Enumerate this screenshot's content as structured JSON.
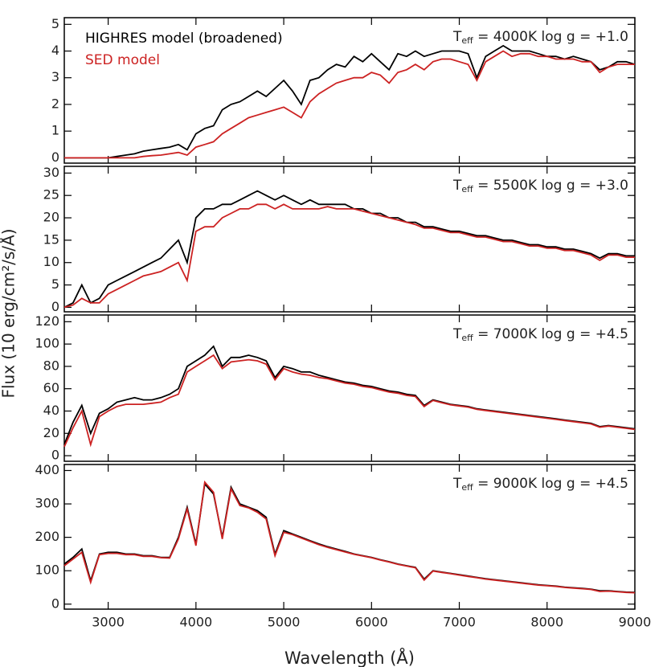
{
  "ylabel": "Flux (10 erg/cm²/s/Å)",
  "chart_data": [
    {
      "type": "line",
      "annotation": [
        "T",
        "eff",
        " = 4000K  log g = +1.0"
      ],
      "x": [
        2500,
        2600,
        2700,
        2800,
        2900,
        3000,
        3100,
        3200,
        3300,
        3400,
        3500,
        3600,
        3700,
        3800,
        3900,
        4000,
        4100,
        4200,
        4300,
        4400,
        4500,
        4600,
        4700,
        4800,
        4900,
        5000,
        5100,
        5200,
        5300,
        5400,
        5500,
        5600,
        5700,
        5800,
        5900,
        6000,
        6100,
        6200,
        6300,
        6400,
        6500,
        6600,
        6700,
        6800,
        6900,
        7000,
        7100,
        7200,
        7300,
        7400,
        7500,
        7600,
        7700,
        7800,
        7900,
        8000,
        8100,
        8200,
        8300,
        8400,
        8500,
        8600,
        8700,
        8800,
        8900,
        9000
      ],
      "series": [
        {
          "name": "HIGHRES model (broadened)",
          "color": "#000000",
          "values": [
            0,
            0,
            0,
            0,
            0,
            0,
            0.05,
            0.1,
            0.15,
            0.25,
            0.3,
            0.35,
            0.4,
            0.5,
            0.3,
            0.9,
            1.1,
            1.2,
            1.8,
            2.0,
            2.1,
            2.3,
            2.5,
            2.3,
            2.6,
            2.9,
            2.5,
            2.0,
            2.9,
            3.0,
            3.3,
            3.5,
            3.4,
            3.8,
            3.6,
            3.9,
            3.6,
            3.3,
            3.9,
            3.8,
            4.0,
            3.8,
            3.9,
            4.0,
            4.0,
            4.0,
            3.9,
            3.0,
            3.8,
            4.0,
            4.2,
            4.0,
            4.0,
            4.0,
            3.9,
            3.8,
            3.8,
            3.7,
            3.8,
            3.7,
            3.6,
            3.3,
            3.4,
            3.6,
            3.6,
            3.5
          ]
        },
        {
          "name": "SED model",
          "color": "#cc2222",
          "values": [
            0,
            0,
            0,
            0,
            0,
            0,
            0,
            0,
            0,
            0.05,
            0.08,
            0.1,
            0.15,
            0.2,
            0.1,
            0.4,
            0.5,
            0.6,
            0.9,
            1.1,
            1.3,
            1.5,
            1.6,
            1.7,
            1.8,
            1.9,
            1.7,
            1.5,
            2.1,
            2.4,
            2.6,
            2.8,
            2.9,
            3.0,
            3.0,
            3.2,
            3.1,
            2.8,
            3.2,
            3.3,
            3.5,
            3.3,
            3.6,
            3.7,
            3.7,
            3.6,
            3.5,
            2.9,
            3.6,
            3.8,
            4.0,
            3.8,
            3.9,
            3.9,
            3.8,
            3.8,
            3.7,
            3.7,
            3.7,
            3.6,
            3.6,
            3.2,
            3.4,
            3.5,
            3.5,
            3.5
          ]
        }
      ],
      "legend": "upper left",
      "xlim": [
        2500,
        9000
      ],
      "xticks": [
        3000,
        4000,
        5000,
        6000,
        7000,
        8000,
        9000
      ],
      "ylim": [
        -0.2,
        5.25
      ],
      "yticks": [
        0,
        1,
        2,
        3,
        4,
        5
      ]
    },
    {
      "type": "line",
      "annotation": [
        "T",
        "eff",
        " = 5500K  log g = +3.0"
      ],
      "x": [
        2500,
        2600,
        2700,
        2800,
        2900,
        3000,
        3100,
        3200,
        3300,
        3400,
        3500,
        3600,
        3700,
        3800,
        3900,
        4000,
        4100,
        4200,
        4300,
        4400,
        4500,
        4600,
        4700,
        4800,
        4900,
        5000,
        5100,
        5200,
        5300,
        5400,
        5500,
        5600,
        5700,
        5800,
        5900,
        6000,
        6100,
        6200,
        6300,
        6400,
        6500,
        6600,
        6700,
        6800,
        6900,
        7000,
        7100,
        7200,
        7300,
        7400,
        7500,
        7600,
        7700,
        7800,
        7900,
        8000,
        8100,
        8200,
        8300,
        8400,
        8500,
        8600,
        8700,
        8800,
        8900,
        9000
      ],
      "series": [
        {
          "color": "#000000",
          "values": [
            0,
            1,
            5,
            1,
            2,
            5,
            6,
            7,
            8,
            9,
            10,
            11,
            13,
            15,
            10,
            20,
            22,
            22,
            23,
            23,
            24,
            25,
            26,
            25,
            24,
            25,
            24,
            23,
            24,
            23,
            23,
            23,
            23,
            22,
            22,
            21,
            21,
            20,
            20,
            19,
            19,
            18,
            18,
            17.5,
            17,
            17,
            16.5,
            16,
            16,
            15.5,
            15,
            15,
            14.5,
            14,
            14,
            13.5,
            13.5,
            13,
            13,
            12.5,
            12,
            11,
            12,
            12,
            11.5,
            11.5
          ]
        },
        {
          "color": "#cc2222",
          "values": [
            0,
            0.5,
            2,
            1,
            1,
            3,
            4,
            5,
            6,
            7,
            7.5,
            8,
            9,
            10,
            6,
            17,
            18,
            18,
            20,
            21,
            22,
            22,
            23,
            23,
            22,
            23,
            22,
            22,
            22,
            22,
            22.5,
            22,
            22,
            22,
            21.5,
            21,
            20.5,
            20,
            19.5,
            19,
            18.5,
            17.7,
            17.7,
            17.2,
            16.7,
            16.7,
            16.2,
            15.7,
            15.7,
            15.2,
            14.7,
            14.7,
            14.2,
            13.7,
            13.7,
            13.2,
            13.2,
            12.7,
            12.7,
            12.2,
            11.7,
            10.5,
            11.7,
            11.7,
            11.2,
            11.2
          ]
        }
      ],
      "xlim": [
        2500,
        9000
      ],
      "xticks": [
        3000,
        4000,
        5000,
        6000,
        7000,
        8000,
        9000
      ],
      "ylim": [
        -1,
        31.5
      ],
      "yticks": [
        0,
        5,
        10,
        15,
        20,
        25,
        30
      ]
    },
    {
      "type": "line",
      "annotation": [
        "T",
        "eff",
        " = 7000K  log g = +4.5"
      ],
      "x": [
        2500,
        2600,
        2700,
        2800,
        2900,
        3000,
        3100,
        3200,
        3300,
        3400,
        3500,
        3600,
        3700,
        3800,
        3900,
        4000,
        4100,
        4200,
        4300,
        4400,
        4500,
        4600,
        4700,
        4800,
        4900,
        5000,
        5100,
        5200,
        5300,
        5400,
        5500,
        5600,
        5700,
        5800,
        5900,
        6000,
        6100,
        6200,
        6300,
        6400,
        6500,
        6600,
        6700,
        6800,
        6900,
        7000,
        7100,
        7200,
        7300,
        7400,
        7500,
        7600,
        7700,
        7800,
        7900,
        8000,
        8100,
        8200,
        8300,
        8400,
        8500,
        8600,
        8700,
        8800,
        8900,
        9000
      ],
      "series": [
        {
          "color": "#000000",
          "values": [
            10,
            30,
            45,
            20,
            38,
            42,
            48,
            50,
            52,
            50,
            50,
            52,
            55,
            60,
            80,
            85,
            90,
            98,
            80,
            88,
            88,
            90,
            88,
            85,
            70,
            80,
            78,
            75,
            75,
            72,
            70,
            68,
            66,
            65,
            63,
            62,
            60,
            58,
            57,
            55,
            54,
            45,
            50,
            48,
            46,
            45,
            44,
            42,
            41,
            40,
            39,
            38,
            37,
            36,
            35,
            34,
            33,
            32,
            31,
            30,
            29,
            26,
            27,
            26,
            25,
            24
          ]
        },
        {
          "color": "#cc2222",
          "values": [
            8,
            25,
            40,
            10,
            35,
            40,
            44,
            46,
            46,
            46,
            47,
            48,
            52,
            55,
            75,
            80,
            85,
            90,
            78,
            84,
            85,
            86,
            85,
            82,
            68,
            78,
            75,
            73,
            72,
            70,
            69,
            67,
            65,
            64,
            62,
            61,
            59,
            57,
            56,
            54,
            53,
            44,
            49.5,
            47.5,
            45.5,
            44.5,
            43.5,
            41.5,
            40.5,
            39.5,
            38.5,
            37.5,
            36.5,
            35.5,
            34.5,
            33.5,
            32.5,
            31.5,
            30.5,
            29.5,
            28.5,
            25.5,
            26.5,
            25.5,
            24.5,
            23.5
          ]
        }
      ],
      "xlim": [
        2500,
        9000
      ],
      "xticks": [
        3000,
        4000,
        5000,
        6000,
        7000,
        8000,
        9000
      ],
      "ylim": [
        -5,
        126
      ],
      "yticks": [
        0,
        20,
        40,
        60,
        80,
        100,
        120
      ]
    },
    {
      "type": "line",
      "annotation": [
        "T",
        "eff",
        " = 9000K  log g = +4.5"
      ],
      "xlabel": "Wavelength (Å)",
      "x": [
        2500,
        2600,
        2700,
        2800,
        2900,
        3000,
        3100,
        3200,
        3300,
        3400,
        3500,
        3600,
        3700,
        3800,
        3900,
        4000,
        4100,
        4200,
        4300,
        4400,
        4500,
        4600,
        4700,
        4800,
        4900,
        5000,
        5100,
        5200,
        5300,
        5400,
        5500,
        5600,
        5700,
        5800,
        5900,
        6000,
        6100,
        6200,
        6300,
        6400,
        6500,
        6600,
        6700,
        6800,
        6900,
        7000,
        7100,
        7200,
        7300,
        7400,
        7500,
        7600,
        7700,
        7800,
        7900,
        8000,
        8100,
        8200,
        8300,
        8400,
        8500,
        8600,
        8700,
        8800,
        8900,
        9000
      ],
      "series": [
        {
          "color": "#000000",
          "values": [
            120,
            140,
            165,
            70,
            150,
            155,
            155,
            150,
            150,
            145,
            145,
            140,
            140,
            200,
            290,
            180,
            360,
            330,
            200,
            350,
            300,
            290,
            280,
            260,
            150,
            220,
            210,
            200,
            190,
            180,
            172,
            165,
            158,
            150,
            145,
            140,
            133,
            127,
            120,
            115,
            110,
            75,
            100,
            96,
            92,
            88,
            84,
            80,
            76,
            73,
            70,
            67,
            64,
            61,
            58,
            56,
            54,
            51,
            49,
            47,
            45,
            40,
            40,
            38,
            36,
            35
          ]
        },
        {
          "color": "#cc2222",
          "values": [
            115,
            135,
            155,
            65,
            148,
            152,
            152,
            148,
            148,
            143,
            143,
            139,
            138,
            195,
            285,
            175,
            365,
            335,
            195,
            345,
            295,
            288,
            275,
            255,
            145,
            215,
            208,
            198,
            188,
            178,
            170,
            163,
            156,
            149,
            144,
            139,
            132,
            126,
            119,
            114,
            109,
            72,
            99,
            95,
            91,
            87,
            83,
            79,
            75,
            72,
            69,
            66,
            63,
            60,
            57,
            55,
            53,
            50,
            48,
            46,
            44,
            38,
            39,
            37,
            35,
            34
          ]
        }
      ],
      "xlim": [
        2500,
        9000
      ],
      "xticks": [
        3000,
        4000,
        5000,
        6000,
        7000,
        8000,
        9000
      ],
      "ylim": [
        -15,
        418
      ],
      "yticks": [
        0,
        100,
        200,
        300,
        400
      ]
    }
  ]
}
